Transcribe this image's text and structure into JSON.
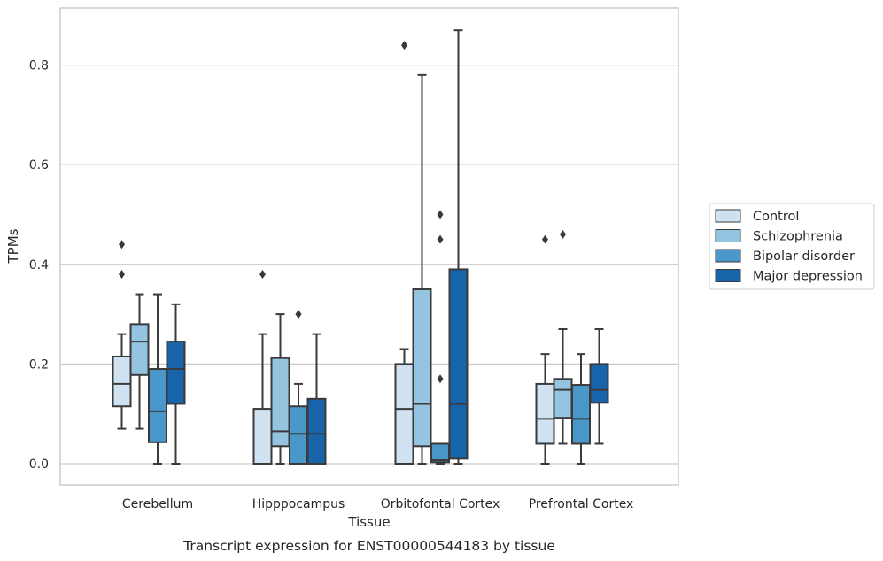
{
  "chart_data": {
    "type": "boxplot",
    "xlabel": "Tissue",
    "ylabel": "TPMs",
    "caption": "Transcript expression for ENST00000544183 by tissue",
    "ylim": [
      -0.042,
      0.92
    ],
    "yticks": [
      0.0,
      0.2,
      0.4,
      0.6,
      0.8
    ],
    "ytick_labels": [
      "0.0",
      "0.2",
      "0.4",
      "0.6",
      "0.8"
    ],
    "grid": true,
    "legend_position": "right",
    "categories": [
      "Cerebellum",
      "Hipppocampus",
      "Orbitofontal Cortex",
      "Prefrontal Cortex"
    ],
    "series": [
      {
        "name": "Control",
        "color": "#d0e1f2",
        "boxes": [
          {
            "whislo": 0.07,
            "q1": 0.115,
            "med": 0.16,
            "q3": 0.215,
            "whishi": 0.26,
            "fliers": [
              0.38,
              0.44
            ]
          },
          {
            "whislo": 0.0,
            "q1": 0.0,
            "med": 0.0,
            "q3": 0.11,
            "whishi": 0.26,
            "fliers": [
              0.38
            ]
          },
          {
            "whislo": 0.0,
            "q1": 0.0,
            "med": 0.11,
            "q3": 0.2,
            "whishi": 0.23,
            "fliers": [
              0.84
            ]
          },
          {
            "whislo": 0.0,
            "q1": 0.04,
            "med": 0.09,
            "q3": 0.16,
            "whishi": 0.22,
            "fliers": [
              0.45
            ]
          }
        ]
      },
      {
        "name": "Schizophrenia",
        "color": "#94c4df",
        "boxes": [
          {
            "whislo": 0.07,
            "q1": 0.178,
            "med": 0.245,
            "q3": 0.28,
            "whishi": 0.34,
            "fliers": []
          },
          {
            "whislo": 0.0,
            "q1": 0.035,
            "med": 0.065,
            "q3": 0.212,
            "whishi": 0.3,
            "fliers": []
          },
          {
            "whislo": 0.0,
            "q1": 0.035,
            "med": 0.12,
            "q3": 0.35,
            "whishi": 0.78,
            "fliers": []
          },
          {
            "whislo": 0.04,
            "q1": 0.092,
            "med": 0.148,
            "q3": 0.17,
            "whishi": 0.27,
            "fliers": [
              0.46
            ]
          }
        ]
      },
      {
        "name": "Bipolar disorder",
        "color": "#4a98c9",
        "boxes": [
          {
            "whislo": 0.0,
            "q1": 0.043,
            "med": 0.105,
            "q3": 0.19,
            "whishi": 0.34,
            "fliers": []
          },
          {
            "whislo": 0.0,
            "q1": 0.0,
            "med": 0.06,
            "q3": 0.115,
            "whishi": 0.16,
            "fliers": [
              0.3
            ]
          },
          {
            "whislo": 0.0,
            "q1": 0.003,
            "med": 0.007,
            "q3": 0.04,
            "whishi": 0.04,
            "fliers": [
              0.17,
              0.45,
              0.5
            ]
          },
          {
            "whislo": 0.0,
            "q1": 0.04,
            "med": 0.09,
            "q3": 0.158,
            "whishi": 0.22,
            "fliers": []
          }
        ]
      },
      {
        "name": "Major depression",
        "color": "#1764ab",
        "boxes": [
          {
            "whislo": 0.0,
            "q1": 0.12,
            "med": 0.19,
            "q3": 0.245,
            "whishi": 0.32,
            "fliers": []
          },
          {
            "whislo": 0.0,
            "q1": 0.0,
            "med": 0.06,
            "q3": 0.13,
            "whishi": 0.26,
            "fliers": []
          },
          {
            "whislo": 0.0,
            "q1": 0.01,
            "med": 0.12,
            "q3": 0.39,
            "whishi": 0.87,
            "fliers": []
          },
          {
            "whislo": 0.04,
            "q1": 0.122,
            "med": 0.148,
            "q3": 0.2,
            "whishi": 0.27,
            "fliers": []
          }
        ]
      }
    ]
  }
}
